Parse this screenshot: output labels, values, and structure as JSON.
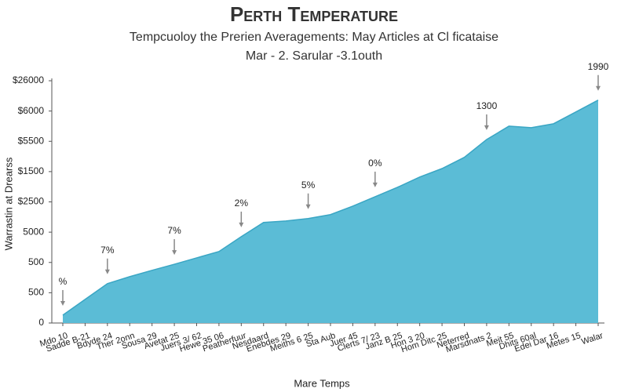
{
  "chart_data": {
    "type": "area",
    "title": "Perth Temperature",
    "subtitle": "Tempcuoloy the Prerien Averagements: May Articles at Cl ficataise",
    "subtitle2": "Mar - 2. Sarular -3.1outh",
    "y_label": "Warrastin at Drearss",
    "x_label": "Mare Temps",
    "categories": [
      "Mdo 10",
      "Sadde B-21",
      "Bdyde 24",
      "Ther 2onn",
      "Sousa 29",
      "Avetat 25",
      "Juers 3/ 62",
      "Hewe 35 06",
      "Peatherfuur",
      "Nesdaard",
      "Enebdes 29",
      "Meiths 6 25",
      "Sta Aub",
      "Juer 45",
      "Clerts 7/ 23",
      "Janz B 25",
      "Hon 3 20",
      "Hom Ditc 25",
      "Neterred",
      "Marsdnats 2",
      "Meit 55",
      "Dhits 60al",
      "Edei Dar 16",
      "Metes 15",
      "Walar"
    ],
    "series": [
      {
        "name": "Temperature",
        "color": "#5bbcd6",
        "values": [
          0.26,
          0.78,
          1.3,
          1.53,
          1.74,
          1.94,
          2.15,
          2.36,
          2.85,
          3.32,
          3.37,
          3.45,
          3.58,
          3.86,
          4.17,
          4.48,
          4.82,
          5.1,
          5.47,
          6.06,
          6.5,
          6.45,
          6.58,
          6.97,
          7.36
        ]
      }
    ],
    "ylim": [
      0,
      8
    ],
    "yticks": [
      {
        "value": 0,
        "label": "0"
      },
      {
        "value": 1,
        "label": "500"
      },
      {
        "value": 2,
        "label": "500"
      },
      {
        "value": 3,
        "label": "5000"
      },
      {
        "value": 4,
        "label": "$2500"
      },
      {
        "value": 5,
        "label": "$1500"
      },
      {
        "value": 6,
        "label": "$5500"
      },
      {
        "value": 7,
        "label": "$6000"
      },
      {
        "value": 8,
        "label": "$26000"
      }
    ],
    "grid": false,
    "annotations": [
      {
        "text": "%",
        "at": "Mdo 10"
      },
      {
        "text": "7%",
        "at": "Bdyde 24"
      },
      {
        "text": "7%",
        "at": "Avetat 25"
      },
      {
        "text": "2%",
        "at": "Peatherfuur"
      },
      {
        "text": "5%",
        "at": "Meiths 6 25"
      },
      {
        "text": "0%",
        "at": "Clerts 7/ 23"
      },
      {
        "text": "1300",
        "at": "Marsdnats 2"
      },
      {
        "text": "1990",
        "at": "Walar"
      }
    ]
  }
}
